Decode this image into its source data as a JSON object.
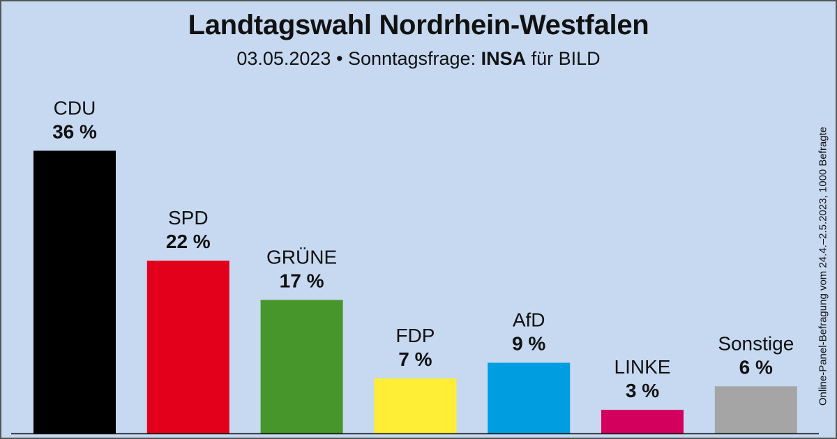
{
  "chart_data": {
    "type": "bar",
    "title": "Landtagswahl Nordrhein-Westfalen",
    "subtitle": {
      "date": "03.05.2023",
      "separator": "•",
      "label": "Sonntagsfrage:",
      "institute": "INSA",
      "client": "für BILD"
    },
    "unit": "%",
    "ylim": [
      0,
      40
    ],
    "categories": [
      "CDU",
      "SPD",
      "GRÜNE",
      "FDP",
      "AfD",
      "LINKE",
      "Sonstige"
    ],
    "values": [
      36,
      22,
      17,
      7,
      9,
      3,
      6
    ],
    "value_labels": [
      "36 %",
      "22 %",
      "17 %",
      "7 %",
      "9 %",
      "3 %",
      "6 %"
    ],
    "colors": [
      "#000000",
      "#e3001b",
      "#46962b",
      "#ffed36",
      "#009ee0",
      "#d3005e",
      "#a5a5a5"
    ],
    "note": "Online-Panel-Befragung vom 24.4.–2.5.2023, 1000 Befragte"
  }
}
